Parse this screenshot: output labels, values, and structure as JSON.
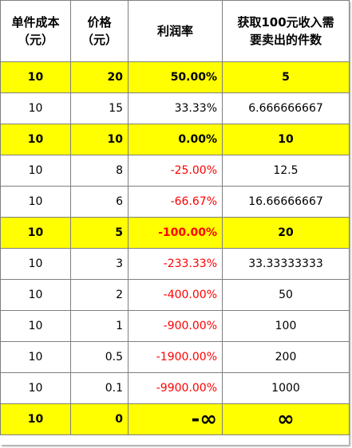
{
  "headers": {
    "cost_line1": "单件成本",
    "cost_line2": "（元）",
    "price_line1": "价格",
    "price_line2": "（元）",
    "margin": "利润率",
    "qty_line1": "获取100元收入需",
    "qty_line2": "要卖出的件数"
  },
  "colors": {
    "highlight": "#ffff00",
    "negative": "#ff0000",
    "border": "#7f7f7f"
  },
  "rows": [
    {
      "cost": "10",
      "price": "20",
      "margin": "50.00%",
      "qty": "5",
      "highlight": true,
      "negative": false
    },
    {
      "cost": "10",
      "price": "15",
      "margin": "33.33%",
      "qty": "6.666666667",
      "highlight": false,
      "negative": false
    },
    {
      "cost": "10",
      "price": "10",
      "margin": "0.00%",
      "qty": "10",
      "highlight": true,
      "negative": false
    },
    {
      "cost": "10",
      "price": "8",
      "margin": "-25.00%",
      "qty": "12.5",
      "highlight": false,
      "negative": true
    },
    {
      "cost": "10",
      "price": "6",
      "margin": "-66.67%",
      "qty": "16.66666667",
      "highlight": false,
      "negative": true
    },
    {
      "cost": "10",
      "price": "5",
      "margin": "-100.00%",
      "qty": "20",
      "highlight": true,
      "negative": true
    },
    {
      "cost": "10",
      "price": "3",
      "margin": "-233.33%",
      "qty": "33.33333333",
      "highlight": false,
      "negative": true
    },
    {
      "cost": "10",
      "price": "2",
      "margin": "-400.00%",
      "qty": "50",
      "highlight": false,
      "negative": true
    },
    {
      "cost": "10",
      "price": "1",
      "margin": "-900.00%",
      "qty": "100",
      "highlight": false,
      "negative": true
    },
    {
      "cost": "10",
      "price": "0.5",
      "margin": "-1900.00%",
      "qty": "200",
      "highlight": false,
      "negative": true
    },
    {
      "cost": "10",
      "price": "0.1",
      "margin": "-9900.00%",
      "qty": "1000",
      "highlight": false,
      "negative": true
    },
    {
      "cost": "10",
      "price": "0",
      "margin": "-∞",
      "qty": "∞",
      "highlight": true,
      "negative": false,
      "symbol": true
    }
  ]
}
